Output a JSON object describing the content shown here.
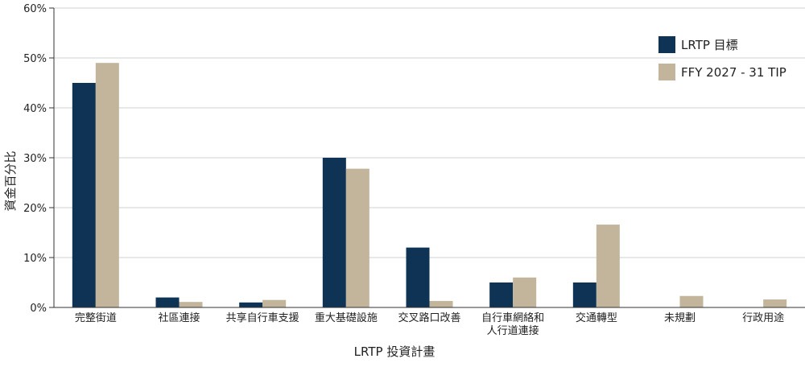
{
  "chart_data": {
    "type": "bar",
    "title": "",
    "xlabel": "LRTP 投資計畫",
    "ylabel": "資金百分比",
    "ylim": [
      0,
      60
    ],
    "yticks": [
      0,
      10,
      20,
      30,
      40,
      50,
      60
    ],
    "ytick_labels": [
      "0%",
      "10%",
      "20%",
      "30%",
      "40%",
      "50%",
      "60%"
    ],
    "grid": true,
    "legend_position": "top-right",
    "categories": [
      [
        "完整街道"
      ],
      [
        "社區連接"
      ],
      [
        "共享自行車支援"
      ],
      [
        "重大基礎設施"
      ],
      [
        "交叉路口改善"
      ],
      [
        "自行車網絡和",
        "人行道連接"
      ],
      [
        "交通轉型"
      ],
      [
        "未規劃"
      ],
      [
        "行政用途"
      ]
    ],
    "series": [
      {
        "name": "LRTP 目標",
        "color": "#0f3354",
        "values": [
          45,
          2,
          1,
          30,
          12,
          5,
          5,
          0,
          0
        ]
      },
      {
        "name": "FFY 2027 - 31 TIP",
        "color": "#c2b59b",
        "values": [
          49,
          1.1,
          1.5,
          27.8,
          1.3,
          6,
          16.6,
          2.3,
          1.6
        ]
      }
    ]
  }
}
